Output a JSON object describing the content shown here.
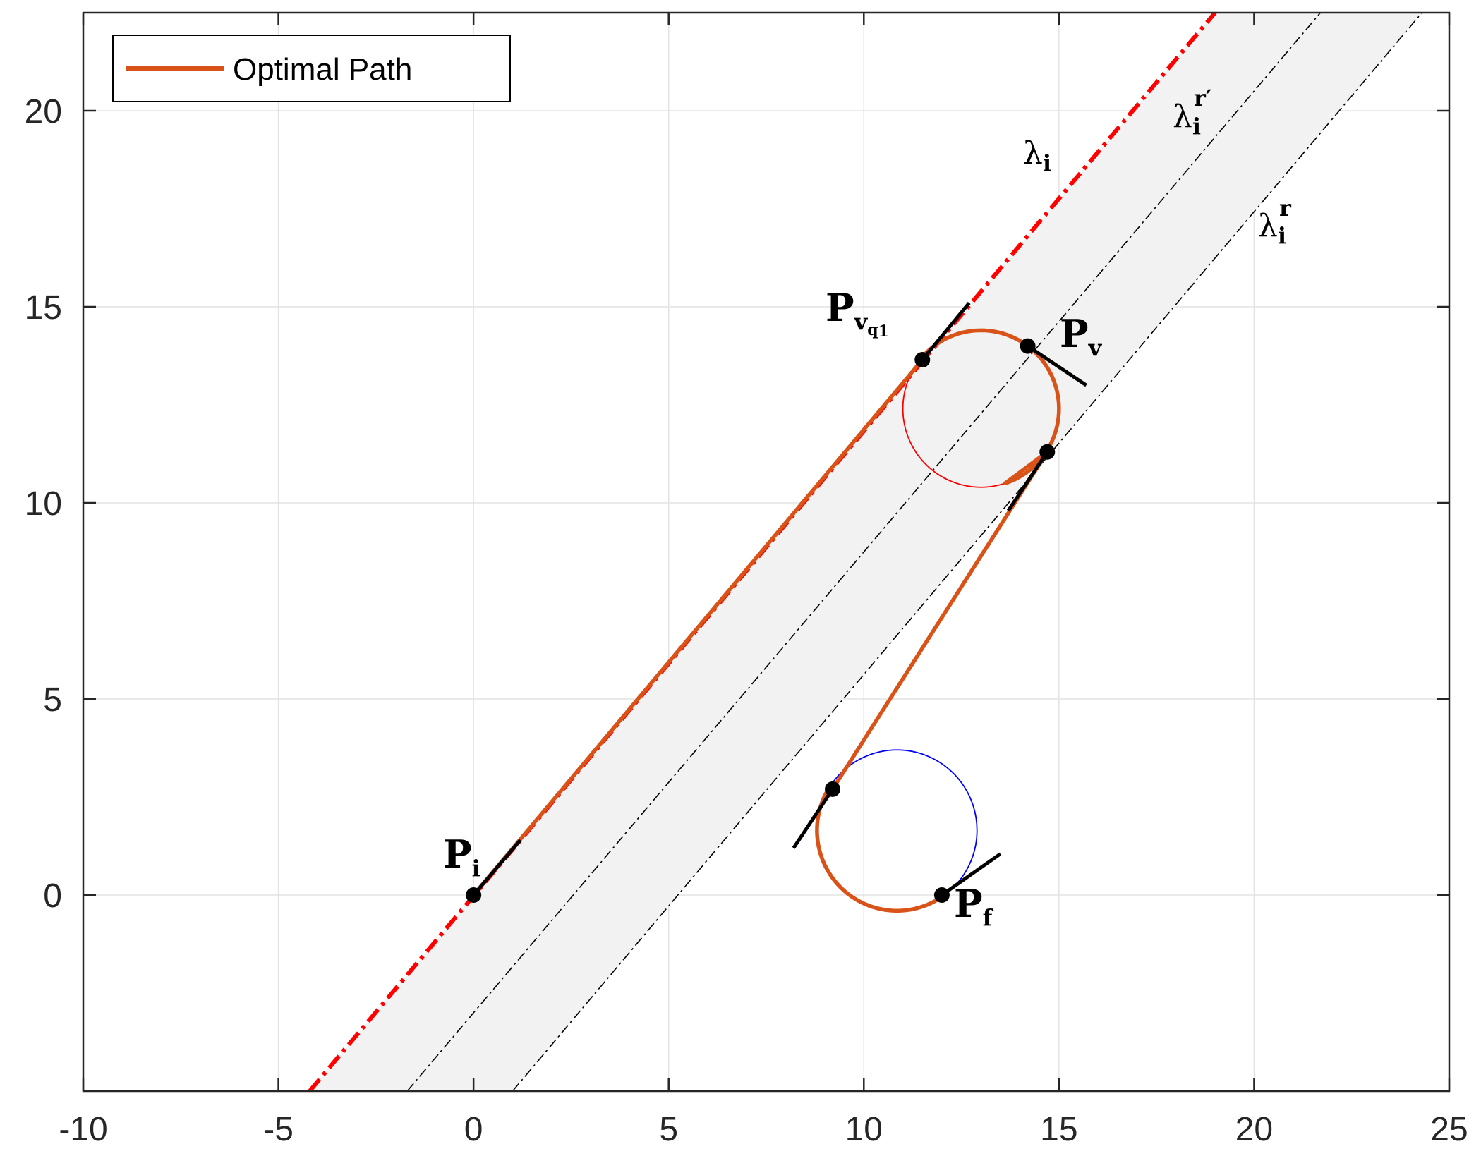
{
  "chart_data": {
    "type": "line",
    "title": "",
    "xlabel": "",
    "ylabel": "",
    "xlim": [
      -10,
      25
    ],
    "ylim": [
      -5,
      22.5
    ],
    "grid": true,
    "legend_location": "top-left",
    "x_ticks": [
      -10,
      -5,
      0,
      5,
      10,
      15,
      20,
      25
    ],
    "y_ticks": [
      0,
      5,
      10,
      15,
      20
    ],
    "x_tick_labels": [
      "-10",
      "-5",
      "0",
      "5",
      "10",
      "15",
      "20",
      "25"
    ],
    "y_tick_labels": [
      "0",
      "5",
      "10",
      "15",
      "20"
    ],
    "series": [
      {
        "name": "Optimal Path",
        "color": "#d95319"
      }
    ],
    "corridor": {
      "color": "#f2f2f2",
      "lines": [
        {
          "id": "lambda_i",
          "color": "#ff0000",
          "style": "dash-dot",
          "from": [
            -4.2,
            -5
          ],
          "to": [
            19,
            22.5
          ]
        },
        {
          "id": "lambda_i_r_prime",
          "color": "#000000",
          "style": "dash-dot",
          "from": [
            -1.7,
            -5
          ],
          "to": [
            21.7,
            22.5
          ]
        },
        {
          "id": "lambda_i_r",
          "color": "#000000",
          "style": "dash-dot",
          "from": [
            1.0,
            -5
          ],
          "to": [
            24.3,
            22.5
          ]
        }
      ]
    },
    "circles": [
      {
        "center": [
          13.0,
          12.4
        ],
        "radius": 2.0,
        "color": "#ff0000"
      },
      {
        "center": [
          10.85,
          1.65
        ],
        "radius": 2.05,
        "color": "#0000ff"
      }
    ],
    "path_segments": [
      {
        "kind": "line",
        "from": [
          0,
          0
        ],
        "to": [
          11.5,
          13.65
        ]
      },
      {
        "kind": "arc",
        "center": [
          13.0,
          12.4
        ],
        "radius": 2.0,
        "from_deg": 140,
        "to_deg": -72,
        "direction": "cw"
      },
      {
        "kind": "line",
        "from": [
          14.7,
          11.3
        ],
        "to": [
          9.2,
          2.7
        ]
      },
      {
        "kind": "arc",
        "center": [
          10.85,
          1.65
        ],
        "radius": 2.05,
        "from_deg": 147,
        "to_deg": 305,
        "direction": "ccw"
      }
    ],
    "points": [
      {
        "label": "Pi",
        "x": 0,
        "y": 0
      },
      {
        "label": "Pvq1",
        "x": 11.5,
        "y": 13.65
      },
      {
        "label": "Pv",
        "x": 14.2,
        "y": 14.0
      },
      {
        "label": "",
        "x": 14.7,
        "y": 11.3
      },
      {
        "label": "",
        "x": 9.2,
        "y": 2.7
      },
      {
        "label": "Pf",
        "x": 12.0,
        "y": 0
      }
    ],
    "heading_segments": [
      {
        "from": [
          0,
          0
        ],
        "to": [
          1.2,
          1.4
        ]
      },
      {
        "from": [
          11.5,
          13.65
        ],
        "to": [
          12.7,
          15.1
        ]
      },
      {
        "from": [
          14.2,
          14.0
        ],
        "to": [
          15.7,
          13.0
        ]
      },
      {
        "from": [
          14.7,
          11.3
        ],
        "to": [
          13.7,
          9.8
        ]
      },
      {
        "from": [
          9.2,
          2.7
        ],
        "to": [
          8.2,
          1.2
        ]
      },
      {
        "from": [
          12.0,
          0
        ],
        "to": [
          13.5,
          1.05
        ]
      }
    ],
    "annotations": {
      "lambda_sym": "λ",
      "P_sym": "P",
      "sub_i": "i",
      "sub_v": "v",
      "sub_f": "f",
      "sub_q": "q",
      "sub_1": "1",
      "sup_r": "r",
      "sup_r_prime": "r′"
    }
  }
}
